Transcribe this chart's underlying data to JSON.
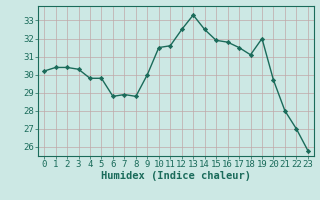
{
  "x": [
    0,
    1,
    2,
    3,
    4,
    5,
    6,
    7,
    8,
    9,
    10,
    11,
    12,
    13,
    14,
    15,
    16,
    17,
    18,
    19,
    20,
    21,
    22,
    23
  ],
  "y": [
    30.2,
    30.4,
    30.4,
    30.3,
    29.8,
    29.8,
    28.8,
    28.9,
    28.8,
    30.0,
    31.5,
    31.6,
    32.5,
    33.3,
    32.5,
    31.9,
    31.8,
    31.5,
    31.1,
    32.0,
    29.7,
    28.0,
    27.0,
    25.8
  ],
  "line_color": "#1a6b5a",
  "bg_color": "#cce8e4",
  "grid_color": "#c0a8a8",
  "axis_color": "#1a6b5a",
  "xlabel": "Humidex (Indice chaleur)",
  "ylim": [
    25.5,
    33.8
  ],
  "xlim": [
    -0.5,
    23.5
  ],
  "yticks": [
    26,
    27,
    28,
    29,
    30,
    31,
    32,
    33
  ],
  "xticks": [
    0,
    1,
    2,
    3,
    4,
    5,
    6,
    7,
    8,
    9,
    10,
    11,
    12,
    13,
    14,
    15,
    16,
    17,
    18,
    19,
    20,
    21,
    22,
    23
  ],
  "marker": "D",
  "marker_size": 2.2,
  "line_width": 1.0,
  "font_size": 6.5,
  "label_font_size": 7.5
}
